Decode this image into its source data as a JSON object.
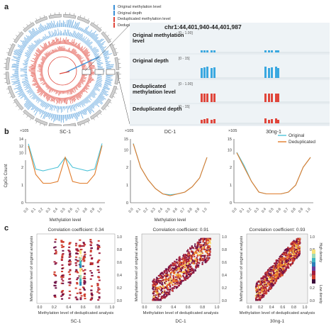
{
  "panels": {
    "a": "a",
    "b": "b",
    "c": "c"
  },
  "panel_a": {
    "legend": [
      {
        "label": "Original methylation level",
        "color": "#3a8fd6"
      },
      {
        "label": "Original depth",
        "color": "#3a8fd6"
      },
      {
        "label": "Deduplicated methylation level",
        "color": "#e0463b"
      },
      {
        "label": "Deduplicated depth",
        "color": "#e0463b"
      }
    ],
    "locus": "chr1:44,401,940-44,401,987",
    "tracks": [
      {
        "label": "Original methylation level",
        "range": "[0 - 1.00]",
        "color": "#3aa8e0"
      },
      {
        "label": "Original depth",
        "range": "[0 - 15]",
        "color": "#3aa8e0"
      },
      {
        "label": "Deduplicated methylation level",
        "range": "[0 - 1.00]",
        "color": "#e0463b"
      },
      {
        "label": "Deduplicated depth",
        "range": "[0 - 15]",
        "color": "#e0463b"
      }
    ]
  },
  "chart_data": [
    {
      "type": "line",
      "title": "SC-1",
      "ylabel": "CpGs Count",
      "xlabel": "Methylation level",
      "exponent": "×10^5",
      "x": [
        0.0,
        0.1,
        0.2,
        0.3,
        0.4,
        0.5,
        0.6,
        0.7,
        0.8,
        0.9,
        1.0
      ],
      "series": [
        {
          "name": "Original",
          "color": "#4ec3d8",
          "values": [
            12.6,
            1.9,
            1.8,
            1.9,
            2.0,
            2.7,
            2.0,
            1.9,
            1.8,
            1.9,
            12.7
          ]
        },
        {
          "name": "Deduplicated",
          "color": "#e07b2a",
          "values": [
            12.0,
            1.6,
            1.1,
            1.1,
            1.2,
            5.8,
            1.2,
            1.1,
            1.1,
            1.6,
            12.1
          ]
        }
      ]
    },
    {
      "type": "line",
      "title": "DC-1",
      "xlabel": "Methylation level",
      "exponent": "×10^5",
      "x": [
        0.0,
        0.1,
        0.2,
        0.3,
        0.4,
        0.5,
        0.6,
        0.7,
        0.8,
        0.9,
        1.0
      ],
      "series": [
        {
          "name": "Original",
          "color": "#4ec3d8",
          "values": [
            13.0,
            2.0,
            1.3,
            0.8,
            0.5,
            0.45,
            0.5,
            0.6,
            0.9,
            1.4,
            4.8
          ]
        },
        {
          "name": "Deduplicated",
          "color": "#e07b2a",
          "values": [
            12.8,
            2.0,
            1.3,
            0.8,
            0.5,
            0.4,
            0.5,
            0.6,
            0.9,
            1.4,
            4.7
          ]
        }
      ]
    },
    {
      "type": "line",
      "title": "30ng-1",
      "x": [
        0.0,
        0.1,
        0.2,
        0.3,
        0.4,
        0.5,
        0.6,
        0.7,
        0.8,
        0.9,
        1.0
      ],
      "exponent": "×10^5",
      "series": [
        {
          "name": "Original",
          "color": "#4ec3d8",
          "values": [
            9.0,
            2.1,
            1.2,
            0.6,
            0.5,
            0.5,
            0.5,
            0.6,
            1.0,
            2.0,
            3.5
          ]
        },
        {
          "name": "Deduplicated",
          "color": "#e07b2a",
          "values": [
            8.8,
            2.0,
            1.2,
            0.6,
            0.5,
            0.5,
            0.5,
            0.6,
            1.0,
            2.0,
            3.4
          ]
        }
      ]
    }
  ],
  "panel_b": {
    "legend": [
      "Original",
      "Deduplicated"
    ],
    "yticks_top_sc": [
      "10",
      "12",
      "14"
    ],
    "yticks_low": [
      "0",
      "1",
      "2"
    ],
    "xticks": [
      "0.0",
      "0.1",
      "0.2",
      "0.3",
      "0.4",
      "0.5",
      "0.6",
      "0.7",
      "0.8",
      "0.9",
      "1.0"
    ]
  },
  "panel_c": [
    {
      "sample": "SC-1",
      "title": "Correlation coefficient: 0.34",
      "ylabel": "Methylation level of original analysis",
      "xlabel": "Methylation level of deduplicated analysis"
    },
    {
      "sample": "DC-1",
      "title": "Correlation coefficient: 0.91",
      "ylabel": "Methylation level of original analysis",
      "xlabel": "Methylation level of deduplicated analysis"
    },
    {
      "sample": "30ng-1",
      "title": "Correlation coefficient: 0.93",
      "ylabel": "Methylation level of original analysis",
      "xlabel": "Methylation level of deduplicated analysis"
    }
  ],
  "colorbar": {
    "high": "High density",
    "low": "Low density"
  },
  "cticks": [
    "0.0",
    "0.2",
    "0.4",
    "0.6",
    "0.8",
    "1.0"
  ]
}
